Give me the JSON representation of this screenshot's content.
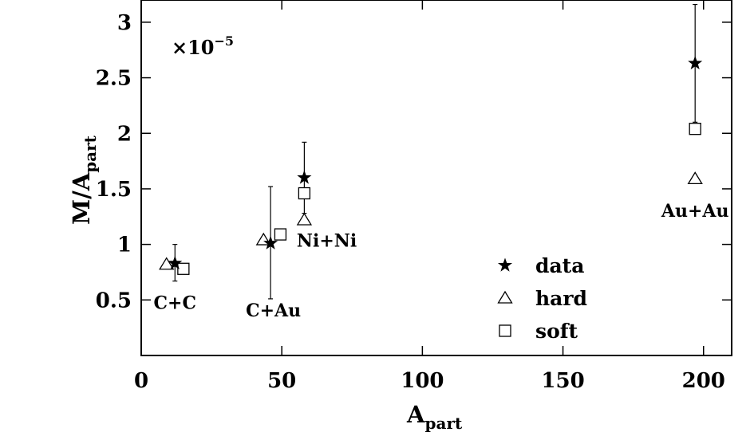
{
  "chart_data": {
    "type": "scatter",
    "xlabel": "A",
    "xlabel_sub": "part",
    "ylabel": "M/A",
    "ylabel_sub": "part",
    "y_multiplier": "×10",
    "y_multiplier_exp": "−5",
    "xlim": [
      0,
      210
    ],
    "ylim": [
      0,
      3.2
    ],
    "x_ticks": [
      0,
      50,
      100,
      150,
      200
    ],
    "y_ticks": [
      0.5,
      1,
      1.5,
      2,
      2.5,
      3
    ],
    "x_tick_labels": [
      "0",
      "50",
      "100",
      "150",
      "200"
    ],
    "y_tick_labels": [
      "0.5",
      "1",
      "1.5",
      "2",
      "2.5",
      "3"
    ],
    "grid": false,
    "legend_position": "bottom-right",
    "series": [
      {
        "name": "data",
        "marker": "star",
        "points": [
          {
            "x": 12,
            "y": 0.83,
            "err_low": 0.67,
            "err_high": 1.0
          },
          {
            "x": 46,
            "y": 1.01,
            "err_low": 0.51,
            "err_high": 1.52
          },
          {
            "x": 58,
            "y": 1.6,
            "err_low": 1.28,
            "err_high": 1.92
          },
          {
            "x": 197,
            "y": 2.63,
            "err_low": 2.1,
            "err_high": 3.16
          }
        ]
      },
      {
        "name": "hard",
        "marker": "triangle",
        "points": [
          {
            "x": 9,
            "y": 0.82
          },
          {
            "x": 43.5,
            "y": 1.04
          },
          {
            "x": 58,
            "y": 1.22
          },
          {
            "x": 197,
            "y": 1.59
          }
        ]
      },
      {
        "name": "soft",
        "marker": "square",
        "points": [
          {
            "x": 15,
            "y": 0.78
          },
          {
            "x": 49.5,
            "y": 1.09
          },
          {
            "x": 58,
            "y": 1.46
          },
          {
            "x": 197,
            "y": 2.04
          }
        ]
      }
    ],
    "annotations": [
      {
        "text": "C+C",
        "x": 12,
        "y": 0.42
      },
      {
        "text": "C+Au",
        "x": 47,
        "y": 0.35
      },
      {
        "text": "Ni+Ni",
        "x": 66,
        "y": 0.98
      },
      {
        "text": "Au+Au",
        "x": 197,
        "y": 1.25
      }
    ]
  }
}
